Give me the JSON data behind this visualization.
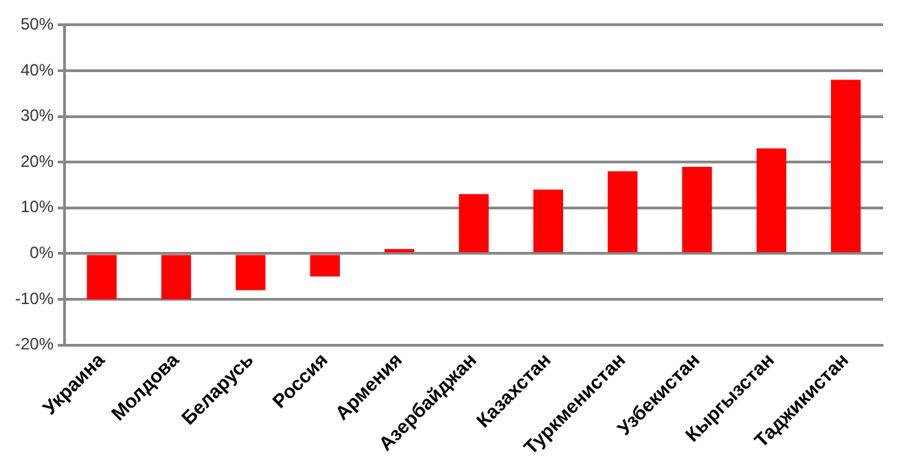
{
  "chart_data": {
    "type": "bar",
    "categories": [
      "Украина",
      "Молдова",
      "Беларусь",
      "Россия",
      "Армения",
      "Азербайджан",
      "Казахстан",
      "Туркменистан",
      "Узбекистан",
      "Кыргызстан",
      "Таджикистан"
    ],
    "values": [
      -10,
      -10,
      -8,
      -5,
      1,
      13,
      14,
      18,
      19,
      23,
      38
    ],
    "color": "#ff0000",
    "ylim": [
      -20,
      50
    ],
    "yticks": [
      {
        "value": -20,
        "label": "-20%"
      },
      {
        "value": -10,
        "label": "-10%"
      },
      {
        "value": 0,
        "label": "0%"
      },
      {
        "value": 10,
        "label": "10%"
      },
      {
        "value": 20,
        "label": "20%"
      },
      {
        "value": 30,
        "label": "30%"
      },
      {
        "value": 40,
        "label": "40%"
      },
      {
        "value": 50,
        "label": "50%"
      }
    ],
    "grid": "y"
  }
}
